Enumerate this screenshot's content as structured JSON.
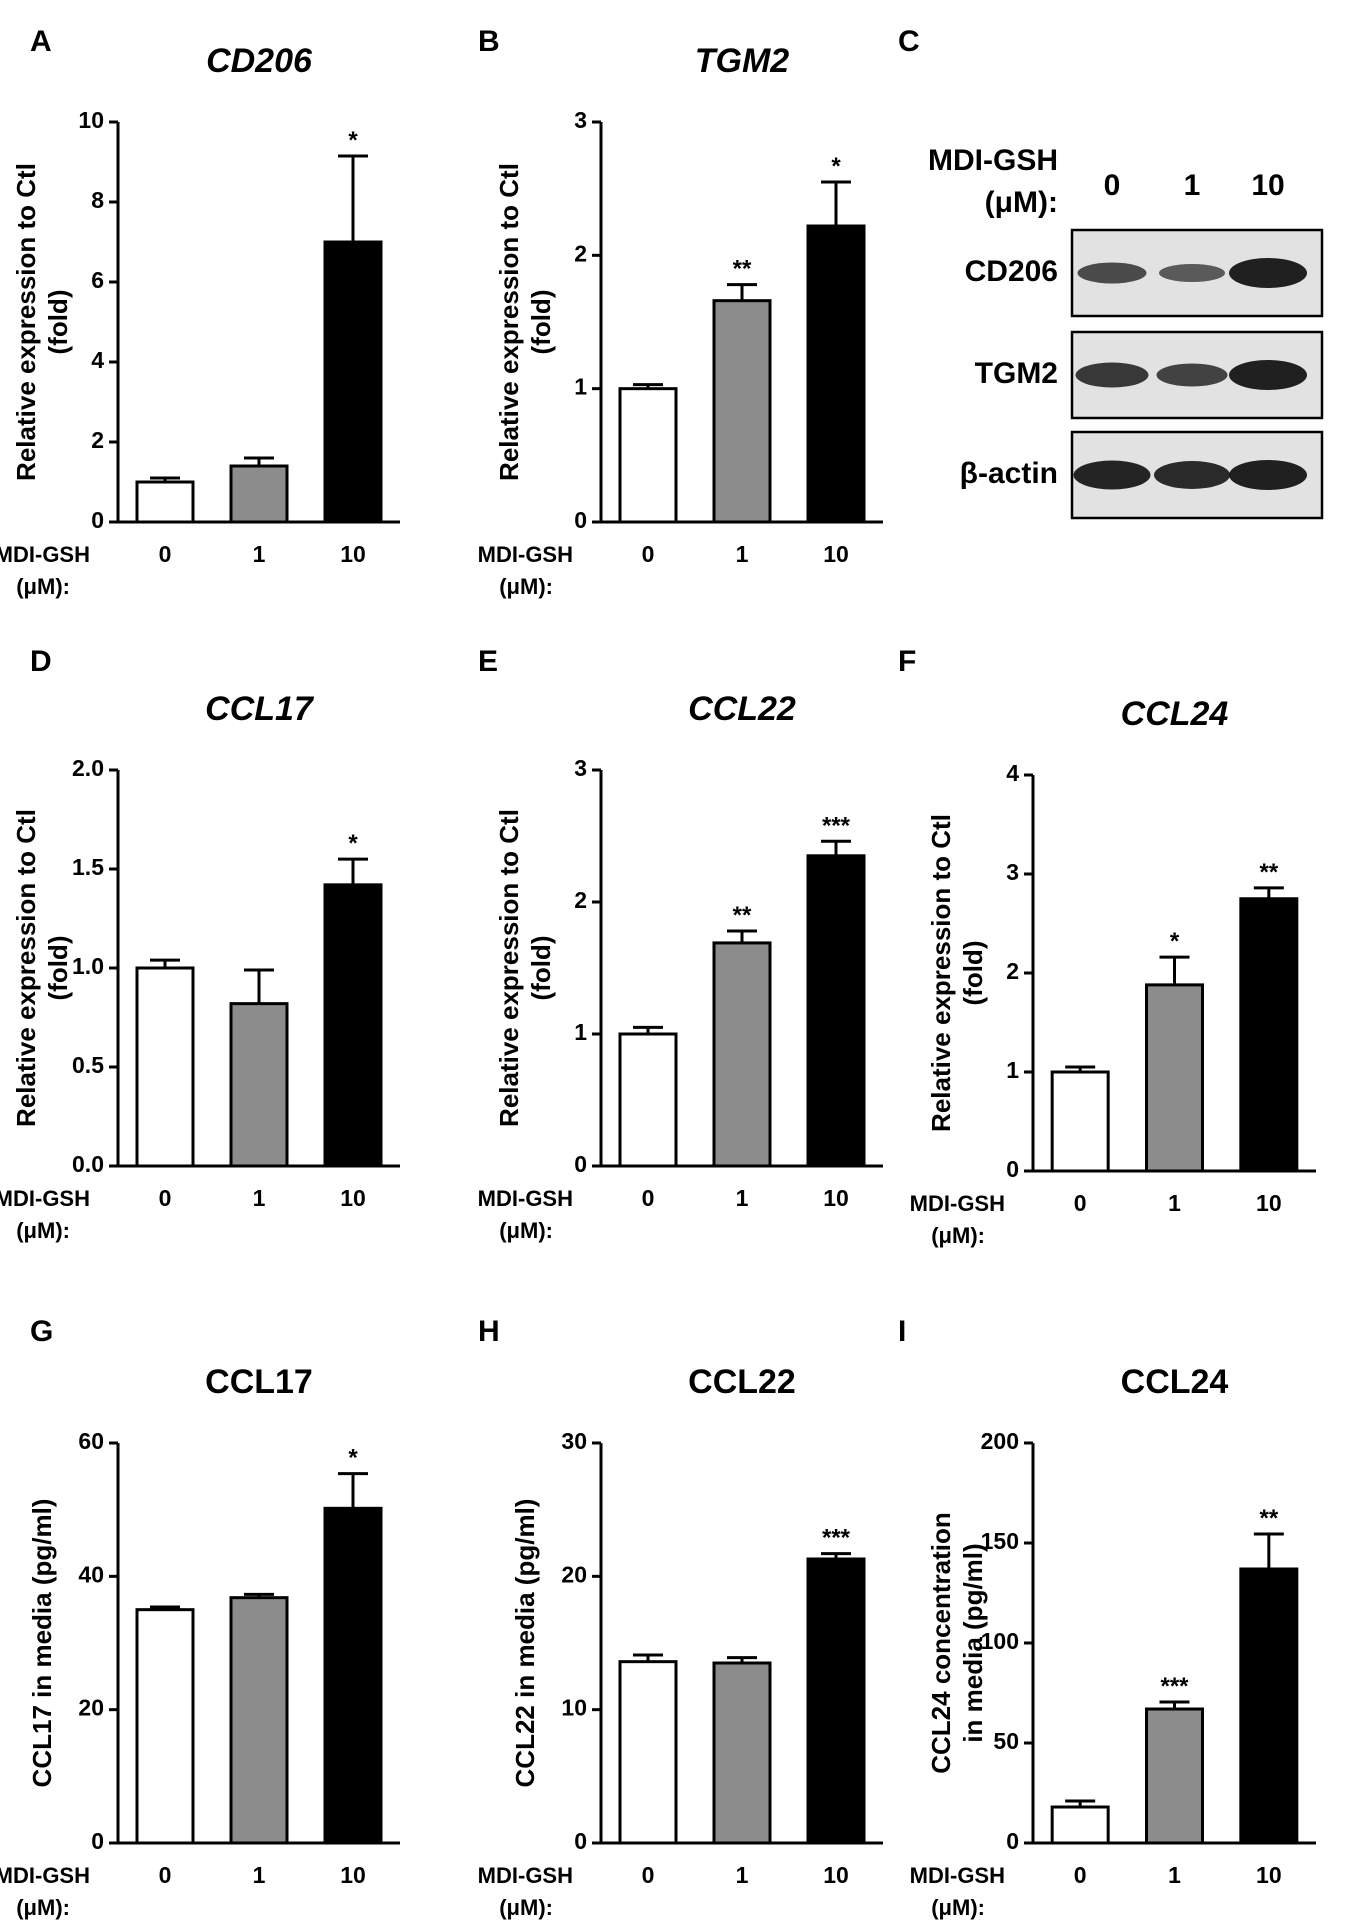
{
  "figure": {
    "shared": {
      "row_label_line1": "MDI-GSH",
      "row_label_line2": "(μM):",
      "bar_colors": [
        "#ffffff",
        "#8c8c8c",
        "#000000"
      ]
    },
    "blot": {
      "letter": "C",
      "header_line1": "MDI-GSH",
      "header_line2": "(μM):",
      "lanes": [
        "0",
        "1",
        "10"
      ],
      "rows": [
        {
          "label": "CD206",
          "intensity": [
            0.55,
            0.4,
            1.0
          ]
        },
        {
          "label": "TGM2",
          "intensity": [
            0.75,
            0.65,
            1.0
          ]
        },
        {
          "label": "β-actin",
          "intensity": [
            0.95,
            0.9,
            1.0
          ]
        }
      ]
    }
  },
  "chart_data": [
    {
      "letter": "A",
      "type": "bar",
      "title": "CD206",
      "italic": true,
      "ylabel": [
        "Relative expression to Ctl",
        "(fold)"
      ],
      "categories": [
        "0",
        "1",
        "10"
      ],
      "values": [
        1.0,
        1.4,
        7.0
      ],
      "errors": [
        0.1,
        0.2,
        2.15
      ],
      "significance": [
        "",
        "",
        "*"
      ],
      "ylim": [
        0,
        10
      ],
      "yticks": [
        0,
        2,
        4,
        6,
        8,
        10
      ],
      "tick_decimals": 0
    },
    {
      "letter": "B",
      "type": "bar",
      "title": "TGM2",
      "italic": true,
      "ylabel": [
        "Relative expression to Ctl",
        "(fold)"
      ],
      "categories": [
        "0",
        "1",
        "10"
      ],
      "values": [
        1.0,
        1.66,
        2.22
      ],
      "errors": [
        0.03,
        0.12,
        0.33
      ],
      "significance": [
        "",
        "**",
        "*"
      ],
      "ylim": [
        0,
        3
      ],
      "yticks": [
        0,
        1,
        2,
        3
      ],
      "tick_decimals": 0
    },
    {
      "letter": "D",
      "type": "bar",
      "title": "CCL17",
      "italic": true,
      "ylabel": [
        "Relative expression to Ctl",
        "(fold)"
      ],
      "categories": [
        "0",
        "1",
        "10"
      ],
      "values": [
        1.0,
        0.82,
        1.42
      ],
      "errors": [
        0.04,
        0.17,
        0.13
      ],
      "significance": [
        "",
        "",
        "*"
      ],
      "ylim": [
        0,
        2.0
      ],
      "yticks": [
        0.0,
        0.5,
        1.0,
        1.5,
        2.0
      ],
      "tick_decimals": 1
    },
    {
      "letter": "E",
      "type": "bar",
      "title": "CCL22",
      "italic": true,
      "ylabel": [
        "Relative expression to Ctl",
        "(fold)"
      ],
      "categories": [
        "0",
        "1",
        "10"
      ],
      "values": [
        1.0,
        1.69,
        2.35
      ],
      "errors": [
        0.05,
        0.09,
        0.11
      ],
      "significance": [
        "",
        "**",
        "***"
      ],
      "ylim": [
        0,
        3
      ],
      "yticks": [
        0,
        1,
        2,
        3
      ],
      "tick_decimals": 0
    },
    {
      "letter": "F",
      "type": "bar",
      "title": "CCL24",
      "italic": true,
      "ylabel": [
        "Relative expression to Ctl",
        "(fold)"
      ],
      "categories": [
        "0",
        "1",
        "10"
      ],
      "values": [
        1.0,
        1.88,
        2.75
      ],
      "errors": [
        0.05,
        0.28,
        0.11
      ],
      "significance": [
        "",
        "*",
        "**"
      ],
      "ylim": [
        0,
        4
      ],
      "yticks": [
        0,
        1,
        2,
        3,
        4
      ],
      "tick_decimals": 0
    },
    {
      "letter": "G",
      "type": "bar",
      "title": "CCL17",
      "italic": false,
      "ylabel": [
        "CCL17 in media (pg/ml)"
      ],
      "categories": [
        "0",
        "1",
        "10"
      ],
      "values": [
        35.0,
        36.8,
        50.2
      ],
      "errors": [
        0.4,
        0.5,
        5.2
      ],
      "significance": [
        "",
        "",
        "*"
      ],
      "ylim": [
        0,
        60
      ],
      "yticks": [
        0,
        20,
        40,
        60
      ],
      "tick_decimals": 0
    },
    {
      "letter": "H",
      "type": "bar",
      "title": "CCL22",
      "italic": false,
      "ylabel": [
        "CCL22 in media (pg/ml)"
      ],
      "categories": [
        "0",
        "1",
        "10"
      ],
      "values": [
        13.6,
        13.5,
        21.3
      ],
      "errors": [
        0.5,
        0.4,
        0.4
      ],
      "significance": [
        "",
        "",
        "***"
      ],
      "ylim": [
        0,
        30
      ],
      "yticks": [
        0,
        10,
        20,
        30
      ],
      "tick_decimals": 0
    },
    {
      "letter": "I",
      "type": "bar",
      "title": "CCL24",
      "italic": false,
      "ylabel": [
        "CCL24 concentration",
        "in media (pg/ml)"
      ],
      "categories": [
        "0",
        "1",
        "10"
      ],
      "values": [
        18.0,
        67.0,
        137.0
      ],
      "errors": [
        3.0,
        3.5,
        17.5
      ],
      "significance": [
        "",
        "***",
        "**"
      ],
      "ylim": [
        0,
        200
      ],
      "yticks": [
        0,
        50,
        100,
        150,
        200
      ],
      "tick_decimals": 0
    }
  ]
}
